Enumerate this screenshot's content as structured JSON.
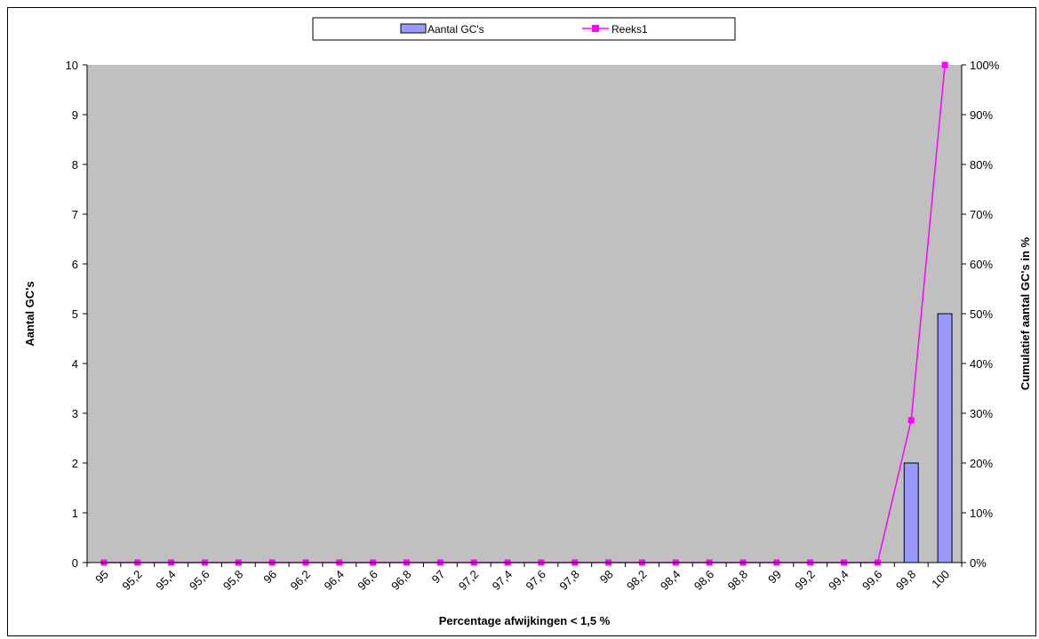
{
  "chart_data": {
    "type": "bar",
    "categories": [
      "95",
      "95,2",
      "95,4",
      "95,6",
      "95,8",
      "96",
      "96,2",
      "96,4",
      "96,6",
      "96,8",
      "97",
      "97,2",
      "97,4",
      "97,6",
      "97,8",
      "98",
      "98,2",
      "98,4",
      "98,6",
      "98,8",
      "99",
      "99,2",
      "99,4",
      "99,6",
      "99,8",
      "100"
    ],
    "series": [
      {
        "name": "Aantal GC's",
        "type": "bar",
        "axis": "left",
        "color": "#9999ff",
        "values": [
          0,
          0,
          0,
          0,
          0,
          0,
          0,
          0,
          0,
          0,
          0,
          0,
          0,
          0,
          0,
          0,
          0,
          0,
          0,
          0,
          0,
          0,
          0,
          0,
          2,
          5
        ]
      },
      {
        "name": "Reeks1",
        "type": "line",
        "axis": "right",
        "color": "#ff00ff",
        "values": [
          0,
          0,
          0,
          0,
          0,
          0,
          0,
          0,
          0,
          0,
          0,
          0,
          0,
          0,
          0,
          0,
          0,
          0,
          0,
          0,
          0,
          0,
          0,
          0,
          28.6,
          100
        ]
      }
    ],
    "xlabel": "Percentage afwijkingen < 1,5 %",
    "ylabel": "Aantal GC's",
    "y2label": "Cumulatief aantal GC's in %",
    "ylim": [
      0,
      10
    ],
    "yticks": [
      "0",
      "1",
      "2",
      "3",
      "4",
      "5",
      "6",
      "7",
      "8",
      "9",
      "10"
    ],
    "y2lim": [
      0,
      100
    ],
    "y2ticks": [
      "0%",
      "10%",
      "20%",
      "30%",
      "40%",
      "50%",
      "60%",
      "70%",
      "80%",
      "90%",
      "100%"
    ],
    "plot_background": "#c0c0c0",
    "grid": false,
    "legend_position": "top-center"
  }
}
